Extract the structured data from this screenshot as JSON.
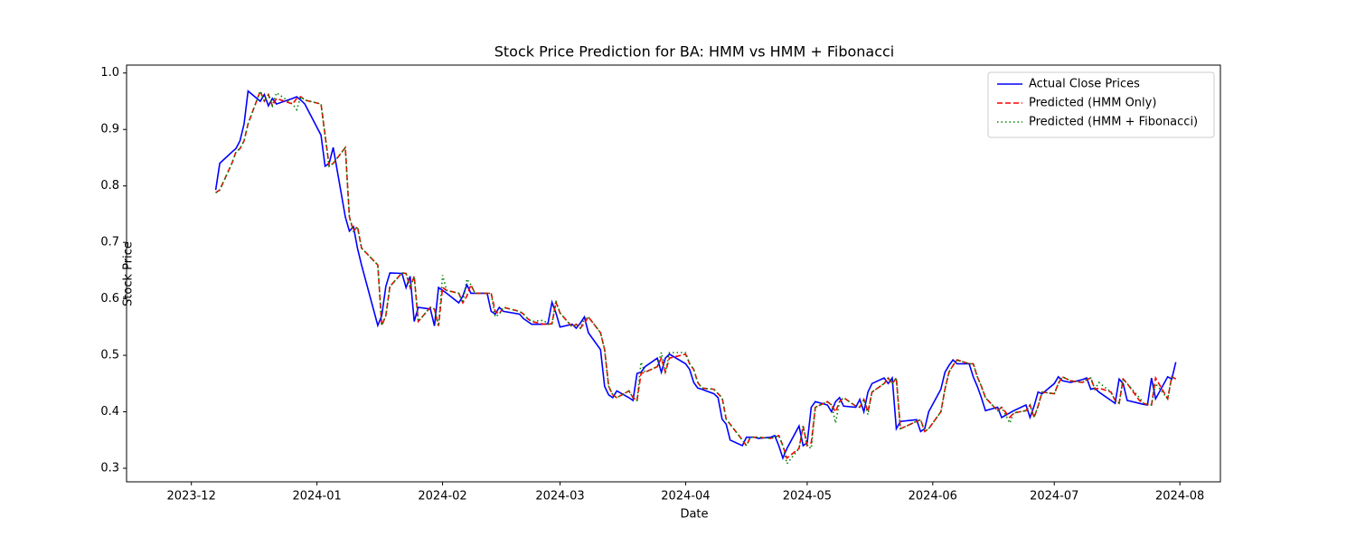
{
  "chart_data": {
    "type": "line",
    "title": "Stock Price Prediction for BA: HMM vs HMM + Fibonacci",
    "x_label": "Date",
    "y_label": "Stock Price",
    "x": [
      "2023-12-07",
      "2023-12-08",
      "2023-12-11",
      "2023-12-12",
      "2023-12-13",
      "2023-12-14",
      "2023-12-15",
      "2023-12-18",
      "2023-12-19",
      "2023-12-20",
      "2023-12-21",
      "2023-12-22",
      "2023-12-26",
      "2023-12-27",
      "2023-12-28",
      "2023-12-29",
      "2024-01-02",
      "2024-01-03",
      "2024-01-04",
      "2024-01-05",
      "2024-01-08",
      "2024-01-09",
      "2024-01-10",
      "2024-01-11",
      "2024-01-12",
      "2024-01-16",
      "2024-01-17",
      "2024-01-18",
      "2024-01-19",
      "2024-01-22",
      "2024-01-23",
      "2024-01-24",
      "2024-01-25",
      "2024-01-26",
      "2024-01-29",
      "2024-01-30",
      "2024-01-31",
      "2024-02-01",
      "2024-02-02",
      "2024-02-05",
      "2024-02-06",
      "2024-02-07",
      "2024-02-08",
      "2024-02-09",
      "2024-02-12",
      "2024-02-13",
      "2024-02-14",
      "2024-02-15",
      "2024-02-16",
      "2024-02-20",
      "2024-02-21",
      "2024-02-22",
      "2024-02-23",
      "2024-02-26",
      "2024-02-27",
      "2024-02-28",
      "2024-02-29",
      "2024-03-01",
      "2024-03-04",
      "2024-03-05",
      "2024-03-06",
      "2024-03-07",
      "2024-03-08",
      "2024-03-11",
      "2024-03-12",
      "2024-03-13",
      "2024-03-14",
      "2024-03-15",
      "2024-03-18",
      "2024-03-19",
      "2024-03-20",
      "2024-03-21",
      "2024-03-22",
      "2024-03-25",
      "2024-03-26",
      "2024-03-27",
      "2024-03-28",
      "2024-04-01",
      "2024-04-02",
      "2024-04-03",
      "2024-04-04",
      "2024-04-05",
      "2024-04-08",
      "2024-04-09",
      "2024-04-10",
      "2024-04-11",
      "2024-04-12",
      "2024-04-15",
      "2024-04-16",
      "2024-04-17",
      "2024-04-18",
      "2024-04-19",
      "2024-04-22",
      "2024-04-23",
      "2024-04-24",
      "2024-04-25",
      "2024-04-26",
      "2024-04-29",
      "2024-04-30",
      "2024-05-01",
      "2024-05-02",
      "2024-05-03",
      "2024-05-06",
      "2024-05-07",
      "2024-05-08",
      "2024-05-09",
      "2024-05-10",
      "2024-05-13",
      "2024-05-14",
      "2024-05-15",
      "2024-05-16",
      "2024-05-17",
      "2024-05-20",
      "2024-05-21",
      "2024-05-22",
      "2024-05-23",
      "2024-05-24",
      "2024-05-28",
      "2024-05-29",
      "2024-05-30",
      "2024-05-31",
      "2024-06-03",
      "2024-06-04",
      "2024-06-05",
      "2024-06-06",
      "2024-06-07",
      "2024-06-10",
      "2024-06-11",
      "2024-06-12",
      "2024-06-13",
      "2024-06-14",
      "2024-06-17",
      "2024-06-18",
      "2024-06-20",
      "2024-06-21",
      "2024-06-24",
      "2024-06-25",
      "2024-06-26",
      "2024-06-27",
      "2024-06-28",
      "2024-07-01",
      "2024-07-02",
      "2024-07-03",
      "2024-07-05",
      "2024-07-08",
      "2024-07-09",
      "2024-07-10",
      "2024-07-11",
      "2024-07-12",
      "2024-07-15",
      "2024-07-16",
      "2024-07-17",
      "2024-07-18",
      "2024-07-19",
      "2024-07-22",
      "2024-07-23",
      "2024-07-24",
      "2024-07-25",
      "2024-07-26",
      "2024-07-29",
      "2024-07-30",
      "2024-07-31"
    ],
    "series": [
      {
        "name": "Actual Close Prices",
        "color": "#0000ff",
        "linestyle": "solid",
        "values": [
          0.793,
          0.84,
          0.86,
          0.866,
          0.88,
          0.91,
          0.968,
          0.95,
          0.962,
          0.942,
          0.955,
          0.945,
          0.955,
          0.958,
          0.952,
          0.945,
          0.89,
          0.835,
          0.84,
          0.868,
          0.745,
          0.72,
          0.728,
          0.69,
          0.66,
          0.553,
          0.57,
          0.622,
          0.646,
          0.645,
          0.62,
          0.64,
          0.56,
          0.585,
          0.582,
          0.552,
          0.62,
          0.615,
          0.61,
          0.593,
          0.605,
          0.625,
          0.61,
          0.61,
          0.61,
          0.578,
          0.573,
          0.585,
          0.578,
          0.573,
          0.565,
          0.56,
          0.555,
          0.555,
          0.556,
          0.594,
          0.575,
          0.55,
          0.555,
          0.548,
          0.557,
          0.568,
          0.54,
          0.51,
          0.445,
          0.43,
          0.425,
          0.437,
          0.425,
          0.42,
          0.468,
          0.47,
          0.48,
          0.495,
          0.47,
          0.495,
          0.502,
          0.485,
          0.475,
          0.452,
          0.442,
          0.44,
          0.432,
          0.425,
          0.387,
          0.378,
          0.35,
          0.34,
          0.355,
          0.355,
          0.355,
          0.353,
          0.355,
          0.358,
          0.34,
          0.318,
          0.335,
          0.375,
          0.34,
          0.345,
          0.408,
          0.418,
          0.412,
          0.4,
          0.418,
          0.425,
          0.41,
          0.408,
          0.422,
          0.4,
          0.435,
          0.45,
          0.46,
          0.45,
          0.46,
          0.37,
          0.383,
          0.386,
          0.365,
          0.37,
          0.4,
          0.44,
          0.47,
          0.482,
          0.492,
          0.485,
          0.485,
          0.462,
          0.445,
          0.425,
          0.402,
          0.408,
          0.39,
          0.398,
          0.402,
          0.412,
          0.39,
          0.41,
          0.435,
          0.432,
          0.45,
          0.462,
          0.455,
          0.452,
          0.457,
          0.46,
          0.44,
          0.442,
          0.435,
          0.42,
          0.415,
          0.458,
          0.45,
          0.42,
          0.415,
          0.413,
          0.412,
          0.46,
          0.423,
          0.462,
          0.458,
          0.488
        ]
      },
      {
        "name": "Predicted (HMM Only)",
        "color": "#ff0000",
        "linestyle": "dashed",
        "values": [
          0.788,
          0.793,
          0.84,
          0.86,
          0.866,
          0.88,
          0.91,
          0.968,
          0.95,
          0.962,
          0.942,
          0.955,
          0.945,
          0.955,
          0.958,
          0.952,
          0.945,
          0.89,
          0.835,
          0.84,
          0.868,
          0.745,
          0.72,
          0.728,
          0.69,
          0.66,
          0.553,
          0.57,
          0.622,
          0.646,
          0.645,
          0.62,
          0.64,
          0.56,
          0.585,
          0.582,
          0.552,
          0.62,
          0.615,
          0.61,
          0.593,
          0.605,
          0.625,
          0.61,
          0.61,
          0.61,
          0.578,
          0.573,
          0.585,
          0.578,
          0.573,
          0.565,
          0.56,
          0.555,
          0.555,
          0.556,
          0.594,
          0.575,
          0.55,
          0.555,
          0.548,
          0.557,
          0.568,
          0.54,
          0.51,
          0.445,
          0.43,
          0.425,
          0.437,
          0.425,
          0.42,
          0.468,
          0.47,
          0.48,
          0.495,
          0.47,
          0.495,
          0.502,
          0.485,
          0.475,
          0.452,
          0.442,
          0.44,
          0.432,
          0.425,
          0.387,
          0.378,
          0.35,
          0.34,
          0.355,
          0.355,
          0.355,
          0.353,
          0.355,
          0.358,
          0.34,
          0.318,
          0.335,
          0.375,
          0.34,
          0.345,
          0.408,
          0.418,
          0.412,
          0.4,
          0.418,
          0.425,
          0.41,
          0.408,
          0.422,
          0.4,
          0.435,
          0.45,
          0.46,
          0.45,
          0.46,
          0.37,
          0.383,
          0.386,
          0.365,
          0.37,
          0.4,
          0.44,
          0.47,
          0.482,
          0.492,
          0.485,
          0.485,
          0.462,
          0.445,
          0.425,
          0.402,
          0.408,
          0.39,
          0.398,
          0.402,
          0.412,
          0.39,
          0.41,
          0.435,
          0.432,
          0.45,
          0.462,
          0.455,
          0.452,
          0.457,
          0.46,
          0.44,
          0.442,
          0.435,
          0.42,
          0.415,
          0.458,
          0.45,
          0.42,
          0.415,
          0.413,
          0.412,
          0.46,
          0.423,
          0.462,
          0.458
        ]
      },
      {
        "name": "Predicted (HMM + Fibonacci)",
        "color": "#008000",
        "linestyle": "dotted",
        "values": [
          0.788,
          0.793,
          0.84,
          0.86,
          0.866,
          0.88,
          0.91,
          0.968,
          0.95,
          0.962,
          0.942,
          0.965,
          0.945,
          0.935,
          0.958,
          0.952,
          0.945,
          0.89,
          0.835,
          0.84,
          0.868,
          0.745,
          0.72,
          0.728,
          0.69,
          0.66,
          0.553,
          0.57,
          0.622,
          0.646,
          0.645,
          0.62,
          0.64,
          0.56,
          0.585,
          0.582,
          0.552,
          0.642,
          0.615,
          0.61,
          0.593,
          0.635,
          0.625,
          0.61,
          0.61,
          0.61,
          0.568,
          0.573,
          0.585,
          0.578,
          0.573,
          0.565,
          0.56,
          0.562,
          0.555,
          0.556,
          0.597,
          0.575,
          0.55,
          0.555,
          0.548,
          0.565,
          0.568,
          0.54,
          0.51,
          0.445,
          0.43,
          0.425,
          0.437,
          0.425,
          0.42,
          0.488,
          0.47,
          0.48,
          0.505,
          0.47,
          0.505,
          0.505,
          0.485,
          0.475,
          0.452,
          0.442,
          0.44,
          0.432,
          0.425,
          0.387,
          0.378,
          0.35,
          0.34,
          0.355,
          0.355,
          0.355,
          0.353,
          0.355,
          0.358,
          0.34,
          0.308,
          0.335,
          0.375,
          0.34,
          0.335,
          0.408,
          0.418,
          0.412,
          0.38,
          0.418,
          0.425,
          0.41,
          0.408,
          0.422,
          0.395,
          0.435,
          0.45,
          0.46,
          0.45,
          0.46,
          0.37,
          0.383,
          0.386,
          0.365,
          0.37,
          0.4,
          0.44,
          0.47,
          0.482,
          0.492,
          0.485,
          0.485,
          0.462,
          0.445,
          0.425,
          0.402,
          0.408,
          0.38,
          0.398,
          0.402,
          0.412,
          0.39,
          0.41,
          0.435,
          0.432,
          0.45,
          0.462,
          0.455,
          0.452,
          0.457,
          0.46,
          0.44,
          0.452,
          0.435,
          0.42,
          0.415,
          0.458,
          0.45,
          0.425,
          0.415,
          0.413,
          0.412,
          0.45,
          0.423,
          0.462,
          0.458
        ]
      }
    ],
    "xlim": [
      "2023-11-15",
      "2024-08-11"
    ],
    "xticks": [
      {
        "value": "2023-12-01",
        "label": "2023-12"
      },
      {
        "value": "2024-01-01",
        "label": "2024-01"
      },
      {
        "value": "2024-02-01",
        "label": "2024-02"
      },
      {
        "value": "2024-03-01",
        "label": "2024-03"
      },
      {
        "value": "2024-04-01",
        "label": "2024-04"
      },
      {
        "value": "2024-05-01",
        "label": "2024-05"
      },
      {
        "value": "2024-06-01",
        "label": "2024-06"
      },
      {
        "value": "2024-07-01",
        "label": "2024-07"
      },
      {
        "value": "2024-08-01",
        "label": "2024-08"
      }
    ],
    "ylim": [
      0.276,
      1.014
    ],
    "yticks": [
      {
        "value": 0.3,
        "label": "0.3"
      },
      {
        "value": 0.4,
        "label": "0.4"
      },
      {
        "value": 0.5,
        "label": "0.5"
      },
      {
        "value": 0.6,
        "label": "0.6"
      },
      {
        "value": 0.7,
        "label": "0.7"
      },
      {
        "value": 0.8,
        "label": "0.8"
      },
      {
        "value": 0.9,
        "label": "0.9"
      },
      {
        "value": 1.0,
        "label": "1.0"
      }
    ],
    "grid": false,
    "legend": "upper right"
  }
}
